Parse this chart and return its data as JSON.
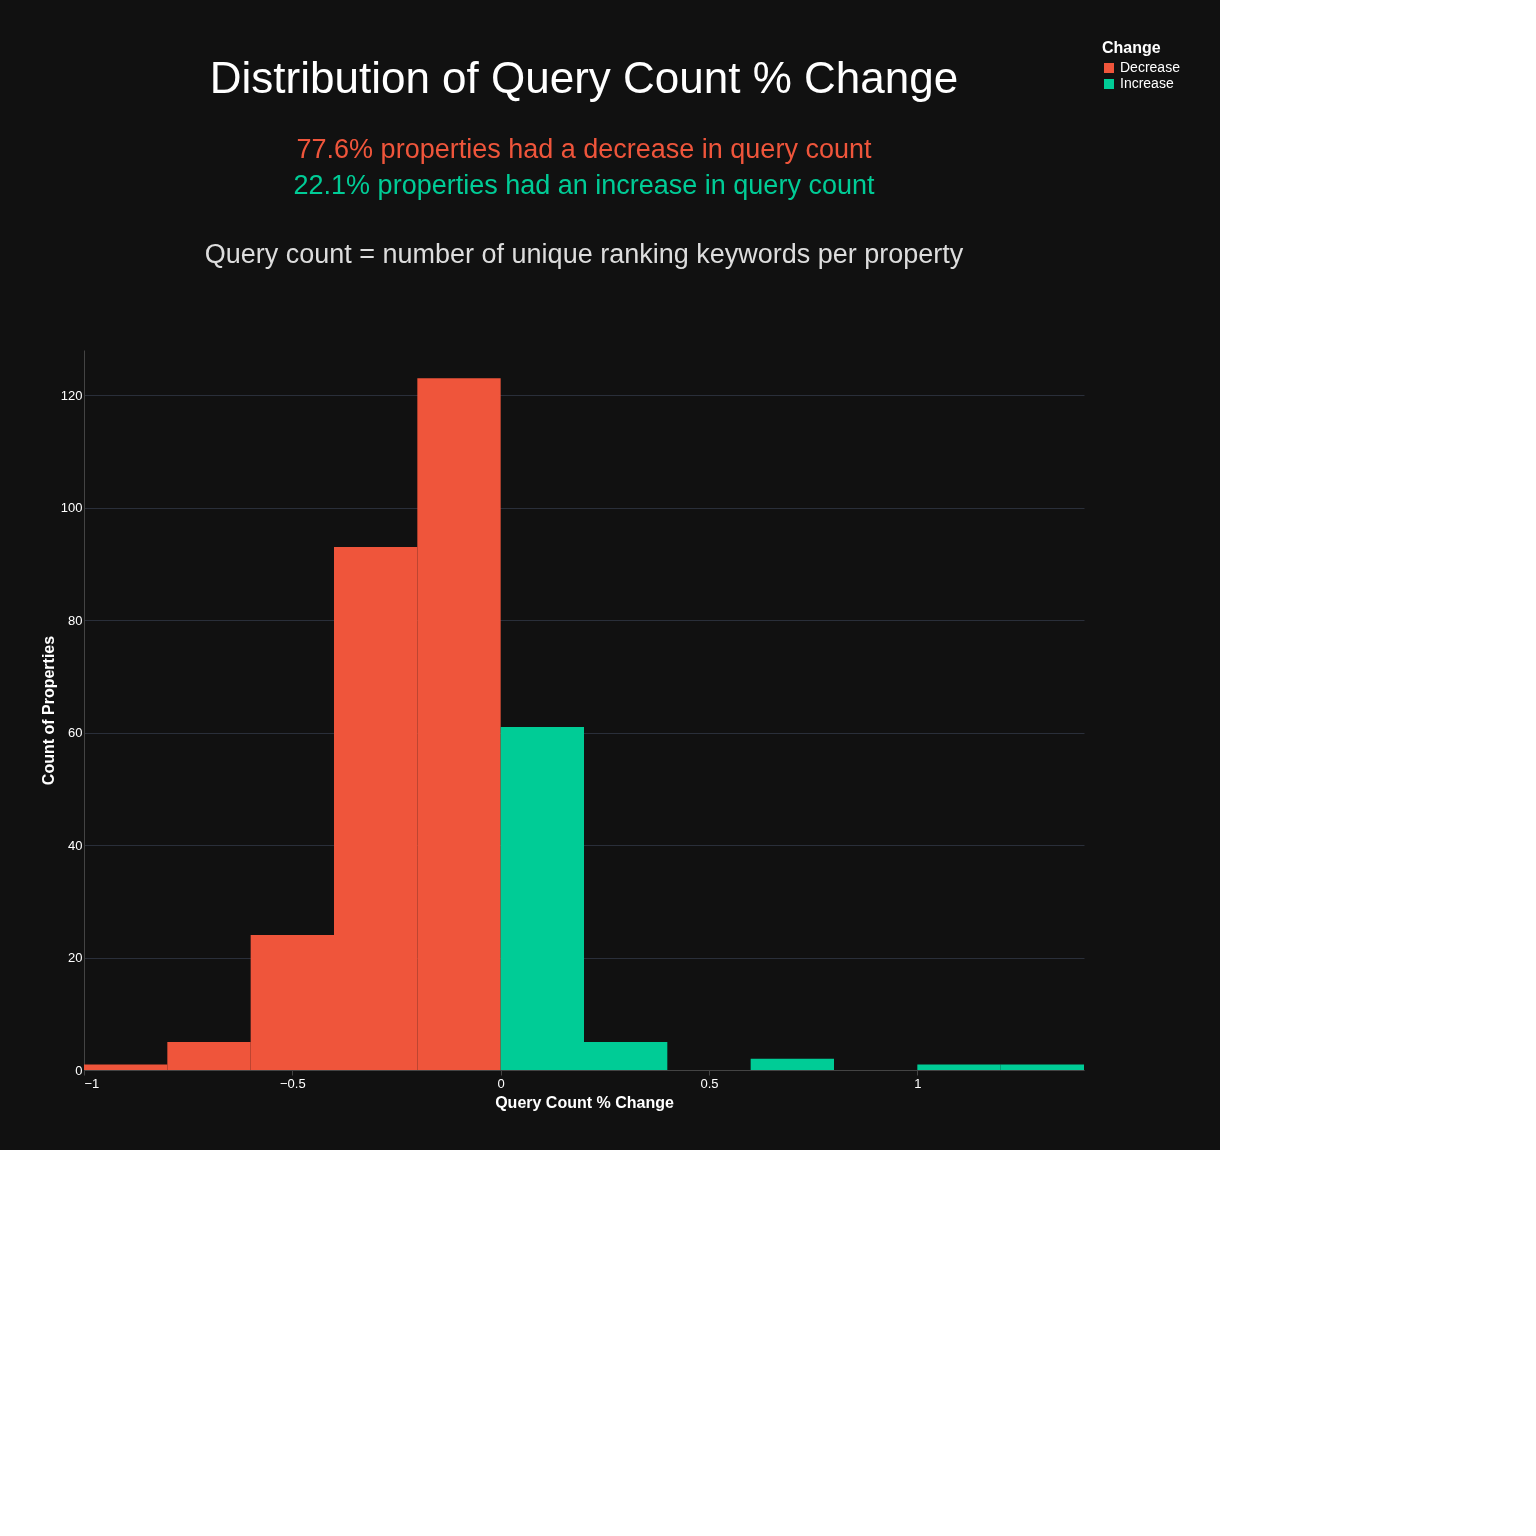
{
  "chart_data": {
    "type": "histogram",
    "title": "Distribution of Query Count % Change",
    "annotations": [
      "77.6% properties had a decrease in query count",
      "22.1% properties had an increase in query count",
      "Query count = number of unique ranking keywords per property"
    ],
    "xlabel": "Query Count % Change",
    "ylabel": "Count of Properties",
    "legend_title": "Change",
    "bins": [
      -1,
      -0.8,
      -0.6,
      -0.4,
      -0.2,
      0,
      0.2,
      0.4,
      0.6,
      0.8,
      1.0,
      1.2,
      1.4
    ],
    "series": [
      {
        "name": "Decrease",
        "color": "#ef553b",
        "values": [
          1,
          5,
          24,
          93,
          123,
          null,
          null,
          null,
          null,
          null,
          null,
          null
        ]
      },
      {
        "name": "Increase",
        "color": "#00cc96",
        "values": [
          null,
          null,
          null,
          null,
          null,
          61,
          5,
          0,
          2,
          0,
          1,
          1
        ]
      }
    ],
    "xlim": [
      -1,
      1.4
    ],
    "xticks": [
      {
        "value": -1,
        "label": "−1"
      },
      {
        "value": -0.5,
        "label": "−0.5"
      },
      0,
      0.5,
      1
    ],
    "ylim": [
      0,
      128
    ],
    "yticks": [
      0,
      20,
      40,
      60,
      80,
      100,
      120
    ],
    "grid": "y",
    "legend": "top right"
  }
}
